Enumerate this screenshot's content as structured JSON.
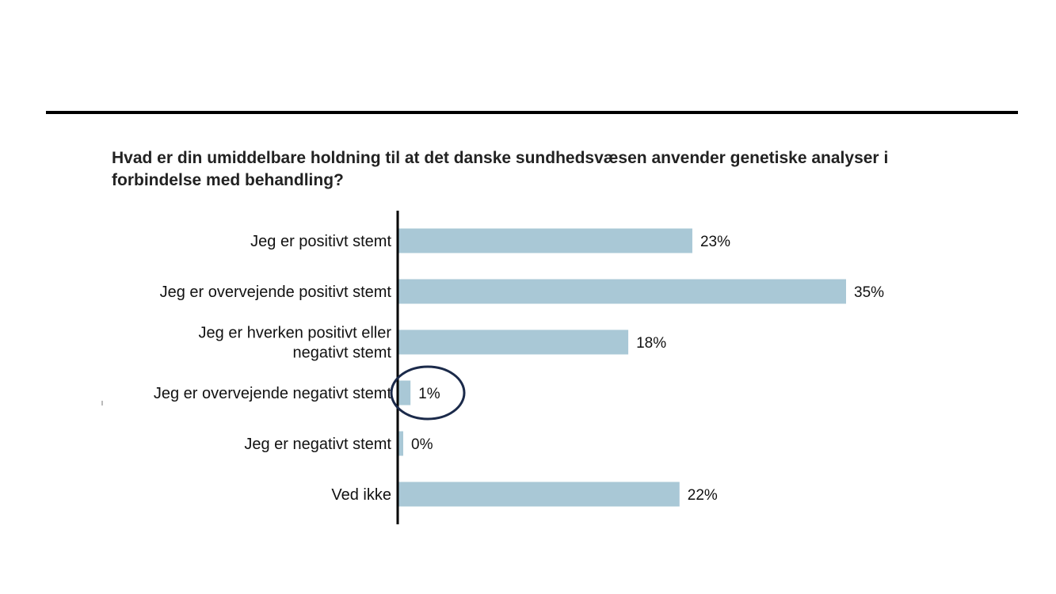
{
  "chart_data": {
    "type": "bar",
    "orientation": "horizontal",
    "title": "Hvad er din umiddelbare holdning til at det danske sundhedsvæsen anvender genetiske analyser i forbindelse med behandling?",
    "categories": [
      [
        "Jeg er positivt stemt"
      ],
      [
        "Jeg er overvejende positivt stemt"
      ],
      [
        "Jeg er hverken positivt eller",
        "negativt stemt"
      ],
      [
        "Jeg er overvejende negativt stemt"
      ],
      [
        "Jeg er negativt stemt"
      ],
      [
        "Ved ikke"
      ]
    ],
    "values": [
      23,
      35,
      18,
      1,
      0,
      22
    ],
    "value_labels": [
      "23%",
      "35%",
      "18%",
      "1%",
      "0%",
      "22%"
    ],
    "unit": "%",
    "xlim": [
      0,
      35
    ],
    "highlighted_index": 3,
    "grid": false,
    "legend": "none"
  },
  "colors": {
    "bar": "#a9c8d6",
    "axis": "#000000",
    "highlight_circle": "#1b2a4a",
    "text": "#111111"
  }
}
